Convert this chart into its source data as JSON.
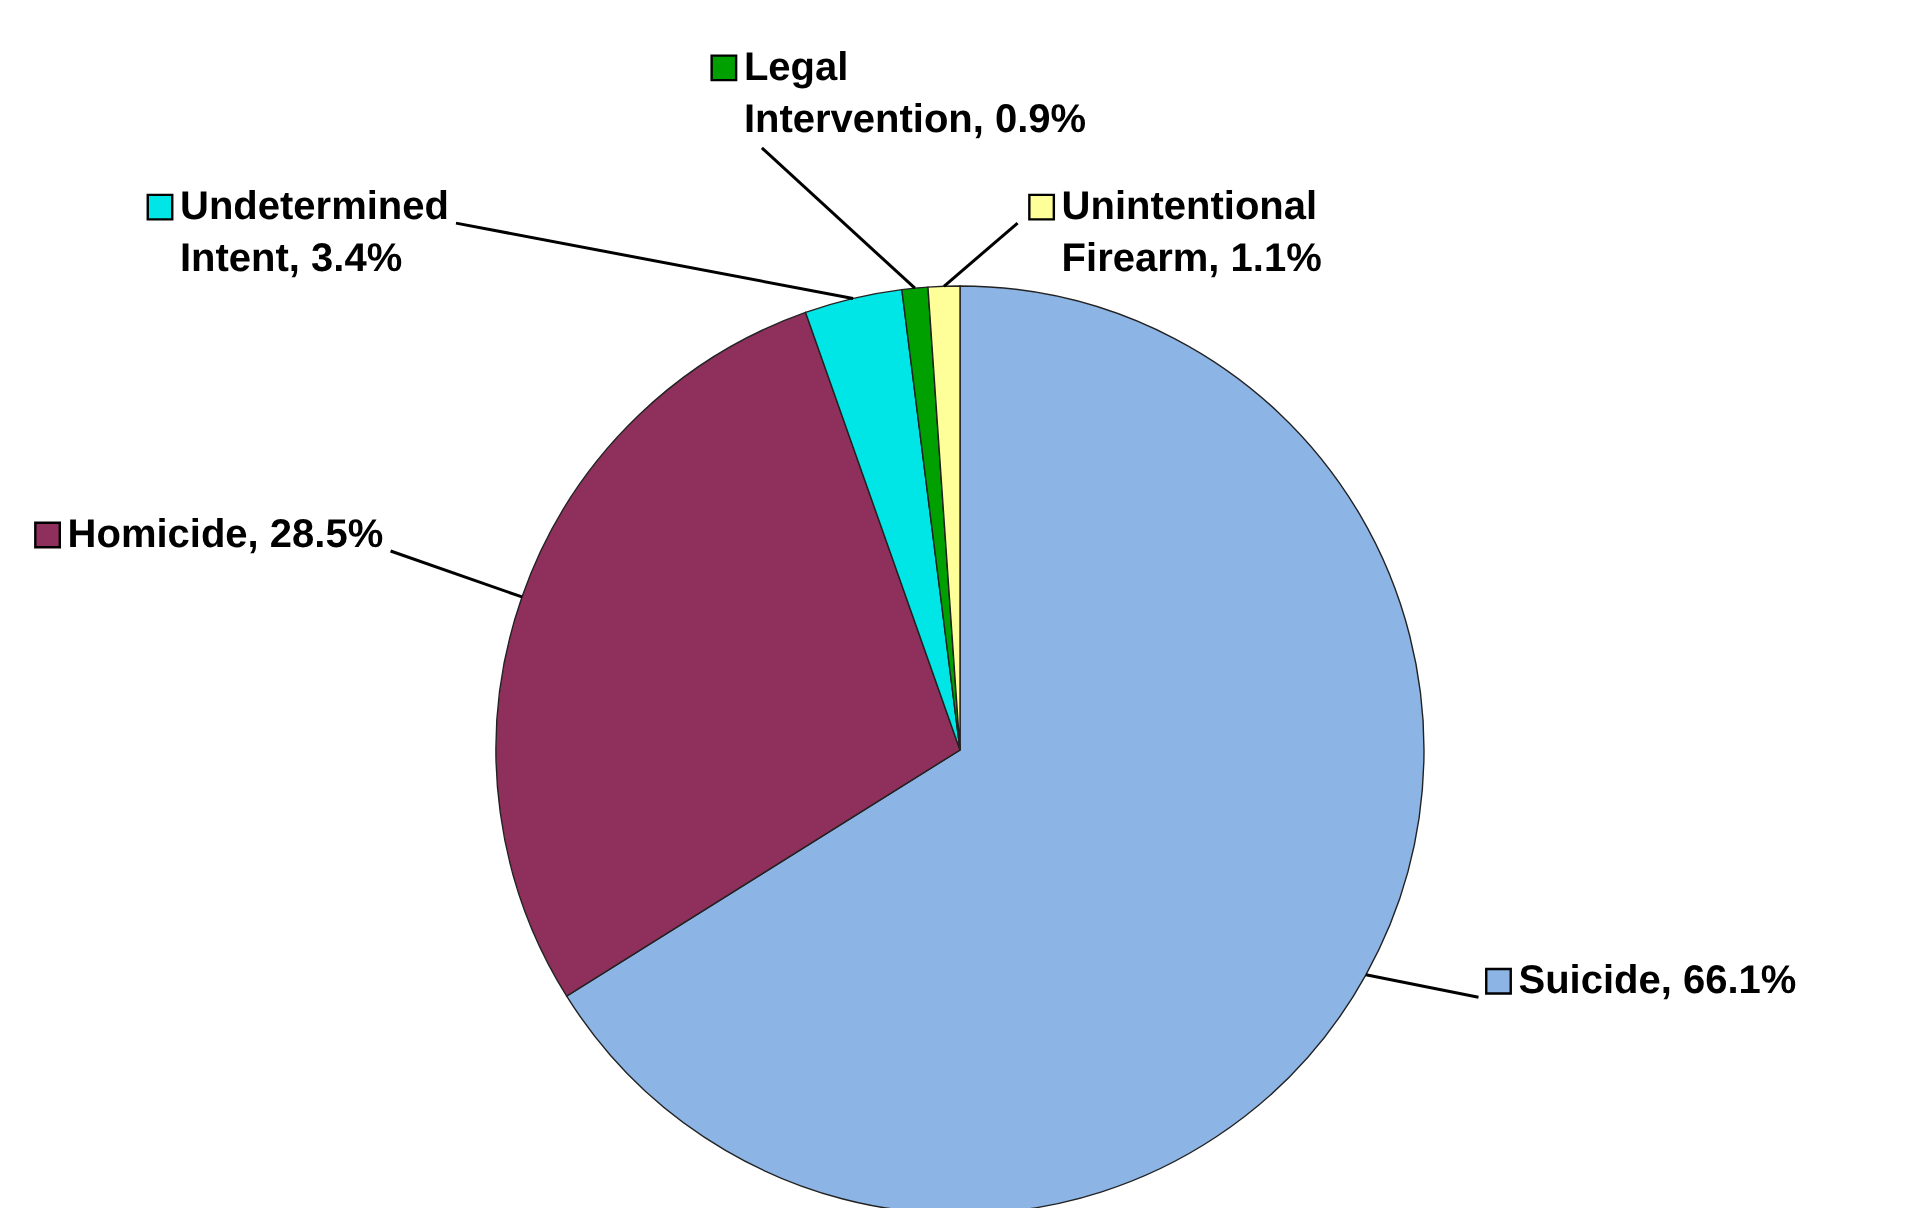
{
  "chart_data": {
    "type": "pie",
    "categories": [
      "Suicide",
      "Homicide",
      "Undetermined Intent",
      "Legal Intervention",
      "Unintentional Firearm"
    ],
    "value_labels": [
      "66.1%",
      "28.5%",
      "3.4%",
      "0.9%",
      "1.1%"
    ],
    "values": [
      66.1,
      28.5,
      3.4,
      0.9,
      1.1
    ],
    "colors": [
      "#8cb4e4",
      "#8e2f5c",
      "#00e5e5",
      "#00a000",
      "#ffff99"
    ],
    "legend": "left"
  }
}
